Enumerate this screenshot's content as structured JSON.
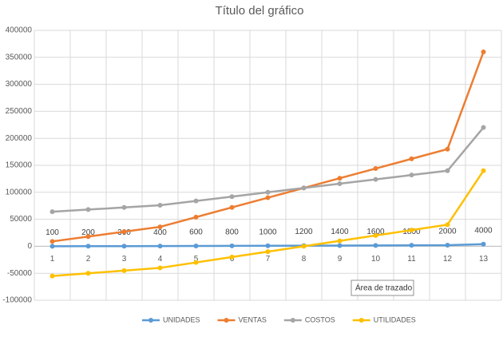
{
  "chart_data": {
    "type": "line",
    "title": "Título del gráfico",
    "categories": [
      "1",
      "2",
      "3",
      "4",
      "5",
      "6",
      "7",
      "8",
      "9",
      "10",
      "11",
      "12",
      "13"
    ],
    "series": [
      {
        "name": "UNIDADES",
        "color": "#5b9bd5",
        "values": [
          100,
          200,
          300,
          400,
          600,
          800,
          1000,
          1200,
          1400,
          1600,
          1800,
          2000,
          4000
        ],
        "data_labels": true
      },
      {
        "name": "VENTAS",
        "color": "#ed7d31",
        "values": [
          9000,
          18000,
          27000,
          36000,
          54000,
          72000,
          90000,
          108000,
          126000,
          144000,
          162000,
          180000,
          360000
        ]
      },
      {
        "name": "COSTOS",
        "color": "#a5a5a5",
        "values": [
          64000,
          68000,
          72000,
          76000,
          84000,
          92000,
          100000,
          108000,
          116000,
          124000,
          132000,
          140000,
          220000
        ]
      },
      {
        "name": "UTILIDADES",
        "color": "#ffc000",
        "values": [
          -55000,
          -50000,
          -45000,
          -40000,
          -30000,
          -20000,
          -10000,
          0,
          10000,
          20000,
          30000,
          40000,
          140000
        ]
      }
    ],
    "ylim": [
      -100000,
      400000
    ],
    "yticks": [
      -100000,
      -50000,
      0,
      50000,
      100000,
      150000,
      200000,
      250000,
      300000,
      350000,
      400000
    ],
    "grid": true,
    "legend": "bottom",
    "annotation": "Área de trazado"
  }
}
